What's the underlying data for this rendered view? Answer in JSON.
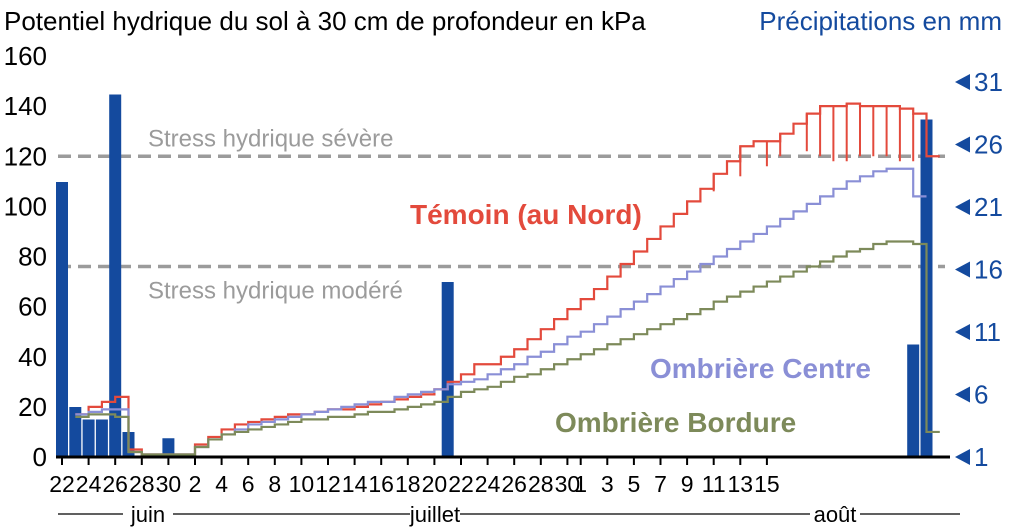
{
  "titles": {
    "left": "Potentiel hydrique du sol à 30 cm de profondeur en kPa",
    "right": "Précipitations en mm"
  },
  "colors": {
    "temoin": "#e34a3c",
    "centre": "#8a8fd6",
    "bordure": "#7d8a5a",
    "rain": "#144a9e",
    "stress": "#9b9b9b",
    "axis": "#000000"
  },
  "chart_data": {
    "type": "line",
    "y_left": {
      "label": "Potentiel hydrique du sol à 30 cm de profondeur en kPa",
      "ticks": [
        0,
        20,
        40,
        60,
        80,
        100,
        120,
        140,
        160
      ],
      "range": [
        0,
        160
      ]
    },
    "y_right": {
      "label": "Précipitations en mm",
      "ticks": [
        1,
        6,
        11,
        16,
        21,
        26,
        31
      ]
    },
    "x_ticks": [
      "22",
      "24",
      "26",
      "28",
      "30",
      "2",
      "4",
      "6",
      "8",
      "10",
      "12",
      "14",
      "16",
      "18",
      "20",
      "22",
      "24",
      "26",
      "28",
      "30",
      "1",
      "3",
      "5",
      "7",
      "9",
      "11",
      "13",
      "15"
    ],
    "months": [
      {
        "label": "juin"
      },
      {
        "label": "juillet"
      },
      {
        "label": "août"
      }
    ],
    "thresholds": [
      {
        "label": "Stress hydrique sévère",
        "value": 120
      },
      {
        "label": "Stress hydrique modéré",
        "value": 76
      }
    ],
    "series": [
      {
        "name": "Témoin (au Nord)",
        "values": [
          [
            0,
            null
          ],
          [
            1,
            17
          ],
          [
            2,
            20
          ],
          [
            3,
            22
          ],
          [
            4,
            24
          ],
          [
            5,
            3
          ],
          [
            6,
            1
          ],
          [
            7,
            1
          ],
          [
            8,
            1
          ],
          [
            9,
            1
          ],
          [
            10,
            5
          ],
          [
            11,
            8
          ],
          [
            12,
            11
          ],
          [
            13,
            13
          ],
          [
            14,
            14
          ],
          [
            15,
            15
          ],
          [
            16,
            16
          ],
          [
            17,
            17
          ],
          [
            18,
            17
          ],
          [
            19,
            18
          ],
          [
            20,
            19
          ],
          [
            21,
            19
          ],
          [
            22,
            20
          ],
          [
            23,
            21
          ],
          [
            24,
            22
          ],
          [
            25,
            23
          ],
          [
            26,
            24
          ],
          [
            27,
            25
          ],
          [
            28,
            27
          ],
          [
            29,
            30
          ],
          [
            30,
            33
          ],
          [
            31,
            37
          ],
          [
            32,
            37
          ],
          [
            33,
            40
          ],
          [
            34,
            43
          ],
          [
            35,
            47
          ],
          [
            36,
            51
          ],
          [
            37,
            55
          ],
          [
            38,
            59
          ],
          [
            39,
            63
          ],
          [
            40,
            67
          ],
          [
            41,
            72
          ],
          [
            42,
            77
          ],
          [
            43,
            82
          ],
          [
            44,
            87
          ],
          [
            45,
            92
          ],
          [
            46,
            97
          ],
          [
            47,
            102
          ],
          [
            48,
            107
          ],
          [
            49,
            113
          ],
          [
            50,
            118
          ],
          [
            51,
            124
          ],
          [
            52,
            126
          ],
          [
            53,
            126
          ],
          [
            54,
            129
          ],
          [
            55,
            133
          ],
          [
            56,
            137
          ],
          [
            57,
            140
          ],
          [
            58,
            140
          ],
          [
            59,
            141
          ],
          [
            60,
            140
          ],
          [
            61,
            140
          ],
          [
            62,
            140
          ],
          [
            63,
            139
          ],
          [
            64,
            137
          ],
          [
            65,
            120
          ]
        ],
        "whiskers": [
          [
            47,
            97
          ],
          [
            49,
            106
          ],
          [
            51,
            112
          ],
          [
            53,
            116
          ],
          [
            54,
            120
          ],
          [
            56,
            122
          ],
          [
            57,
            120
          ],
          [
            58,
            118
          ],
          [
            59,
            118
          ],
          [
            60,
            120
          ],
          [
            61,
            120
          ],
          [
            62,
            120
          ],
          [
            63,
            118
          ],
          [
            64,
            118
          ]
        ]
      },
      {
        "name": "Ombrière Centre",
        "values": [
          [
            0,
            null
          ],
          [
            1,
            17
          ],
          [
            2,
            18
          ],
          [
            3,
            19
          ],
          [
            4,
            19
          ],
          [
            5,
            2
          ],
          [
            6,
            1
          ],
          [
            7,
            1
          ],
          [
            8,
            1
          ],
          [
            9,
            1
          ],
          [
            10,
            4
          ],
          [
            11,
            7
          ],
          [
            12,
            9
          ],
          [
            13,
            11
          ],
          [
            14,
            13
          ],
          [
            15,
            14
          ],
          [
            16,
            15
          ],
          [
            17,
            16
          ],
          [
            18,
            17
          ],
          [
            19,
            18
          ],
          [
            20,
            19
          ],
          [
            21,
            20
          ],
          [
            22,
            21
          ],
          [
            23,
            22
          ],
          [
            24,
            22
          ],
          [
            25,
            24
          ],
          [
            26,
            25
          ],
          [
            27,
            26
          ],
          [
            28,
            27
          ],
          [
            29,
            29
          ],
          [
            30,
            30
          ],
          [
            31,
            31
          ],
          [
            32,
            33
          ],
          [
            33,
            35
          ],
          [
            34,
            37
          ],
          [
            35,
            40
          ],
          [
            36,
            42
          ],
          [
            37,
            45
          ],
          [
            38,
            48
          ],
          [
            39,
            50
          ],
          [
            40,
            53
          ],
          [
            41,
            56
          ],
          [
            42,
            59
          ],
          [
            43,
            62
          ],
          [
            44,
            65
          ],
          [
            45,
            68
          ],
          [
            46,
            71
          ],
          [
            47,
            74
          ],
          [
            48,
            77
          ],
          [
            49,
            80
          ],
          [
            50,
            83
          ],
          [
            51,
            86
          ],
          [
            52,
            89
          ],
          [
            53,
            92
          ],
          [
            54,
            95
          ],
          [
            55,
            98
          ],
          [
            56,
            101
          ],
          [
            57,
            104
          ],
          [
            58,
            107
          ],
          [
            59,
            110
          ],
          [
            60,
            112
          ],
          [
            61,
            114
          ],
          [
            62,
            115
          ],
          [
            63,
            115
          ],
          [
            64,
            104
          ]
        ]
      },
      {
        "name": "Ombrière Bordure",
        "values": [
          [
            0,
            null
          ],
          [
            1,
            16
          ],
          [
            2,
            17
          ],
          [
            3,
            17
          ],
          [
            4,
            16
          ],
          [
            5,
            2
          ],
          [
            6,
            1
          ],
          [
            7,
            1
          ],
          [
            8,
            1
          ],
          [
            9,
            1
          ],
          [
            10,
            4
          ],
          [
            11,
            7
          ],
          [
            12,
            9
          ],
          [
            13,
            10
          ],
          [
            14,
            11
          ],
          [
            15,
            12
          ],
          [
            16,
            13
          ],
          [
            17,
            14
          ],
          [
            18,
            15
          ],
          [
            19,
            15
          ],
          [
            20,
            16
          ],
          [
            21,
            16
          ],
          [
            22,
            17
          ],
          [
            23,
            18
          ],
          [
            24,
            18
          ],
          [
            25,
            19
          ],
          [
            26,
            20
          ],
          [
            27,
            21
          ],
          [
            28,
            22
          ],
          [
            29,
            24
          ],
          [
            30,
            26
          ],
          [
            31,
            27
          ],
          [
            32,
            28
          ],
          [
            33,
            30
          ],
          [
            34,
            32
          ],
          [
            35,
            33
          ],
          [
            36,
            35
          ],
          [
            37,
            37
          ],
          [
            38,
            39
          ],
          [
            39,
            41
          ],
          [
            40,
            43
          ],
          [
            41,
            45
          ],
          [
            42,
            47
          ],
          [
            43,
            49
          ],
          [
            44,
            51
          ],
          [
            45,
            53
          ],
          [
            46,
            55
          ],
          [
            47,
            57
          ],
          [
            48,
            59
          ],
          [
            49,
            62
          ],
          [
            50,
            64
          ],
          [
            51,
            66
          ],
          [
            52,
            68
          ],
          [
            53,
            70
          ],
          [
            54,
            72
          ],
          [
            55,
            74
          ],
          [
            56,
            76
          ],
          [
            57,
            78
          ],
          [
            58,
            80
          ],
          [
            59,
            82
          ],
          [
            60,
            83
          ],
          [
            61,
            85
          ],
          [
            62,
            86
          ],
          [
            63,
            86
          ],
          [
            64,
            85
          ],
          [
            65,
            10
          ]
        ]
      }
    ],
    "rain": [
      {
        "day": 0,
        "mm": 23
      },
      {
        "day": 1,
        "mm": 5
      },
      {
        "day": 2,
        "mm": 4
      },
      {
        "day": 3,
        "mm": 4
      },
      {
        "day": 4,
        "mm": 30
      },
      {
        "day": 5,
        "mm": 3
      },
      {
        "day": 8,
        "mm": 2.5
      },
      {
        "day": 29,
        "mm": 15
      },
      {
        "day": 31,
        "mm": 1
      },
      {
        "day": 64,
        "mm": 10
      },
      {
        "day": 65,
        "mm": 28
      }
    ]
  }
}
